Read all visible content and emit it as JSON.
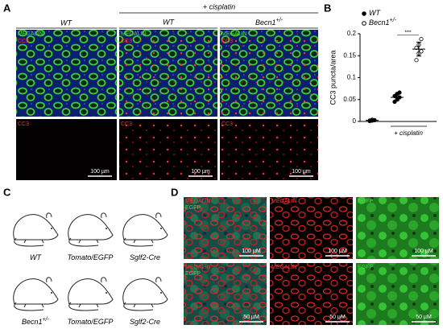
{
  "panel_a": {
    "label": "A",
    "header_wt": "WT",
    "treatment": "+ cisplatin",
    "header_wt2": "WT",
    "header_becn": {
      "text": "Becn1",
      "sup": "+/-"
    },
    "top_labels": [
      [
        "MEGALIN",
        "CC3"
      ],
      [
        "MEGALIN",
        "CC3"
      ],
      [
        "MEGALIN",
        "CC3"
      ]
    ],
    "bottom_labels": [
      "CC3",
      "CC3",
      "CC3"
    ],
    "scale_bars": [
      "100 µm",
      "100 µm",
      "100 µm"
    ]
  },
  "panel_b_label": "B",
  "chart_data": {
    "type": "scatter",
    "y_label": "CC3 puncta/area",
    "ylim": [
      0,
      0.2
    ],
    "yticks": [
      0,
      0.05,
      0.1,
      0.15,
      0.2
    ],
    "series": [
      {
        "name": {
          "text": "WT"
        },
        "color": "#000000",
        "filled": true
      },
      {
        "name": {
          "text": "Becn1",
          "sup": "+/-"
        },
        "color": "#000000",
        "filled": false
      }
    ],
    "groups": [
      {
        "series": 0,
        "values": [
          0.001,
          0.002,
          0.003,
          0.002,
          0.004
        ],
        "mean": 0.0025,
        "sd": 0.001
      },
      {
        "series": 0,
        "values": [
          0.045,
          0.05,
          0.055,
          0.058,
          0.063,
          0.066
        ],
        "mean": 0.055,
        "sd": 0.007
      },
      {
        "series": 1,
        "values": [
          0.14,
          0.155,
          0.16,
          0.168,
          0.175,
          0.188
        ],
        "mean": 0.165,
        "sd": 0.016
      }
    ],
    "significance": "***",
    "group_label": "+ cisplatin"
  },
  "panel_c": {
    "label": "C",
    "mice": [
      {
        "text": "WT"
      },
      {
        "text": "Tomato/EGFP"
      },
      {
        "text": "Sglf2-Cre"
      },
      {
        "text": "Becn1",
        "sup": "+/-"
      },
      {
        "text": "Tomato/EGFP"
      },
      {
        "text": "Sglf2-Cre"
      }
    ]
  },
  "panel_d": {
    "label": "D",
    "row1_labels": [
      [
        "MEGALIN",
        "EGFP"
      ],
      [
        "MEGALIN"
      ],
      [
        "EGFP"
      ]
    ],
    "row2_labels": [
      [
        "MEGALIN",
        "EGFP"
      ],
      [
        "MEGALIN"
      ],
      [
        "EGFP"
      ]
    ],
    "row1_scale": [
      "100 µM",
      "100 µM",
      "100 µM"
    ],
    "row2_scale": [
      "50 µM",
      "50 µM",
      "50 µM"
    ]
  }
}
